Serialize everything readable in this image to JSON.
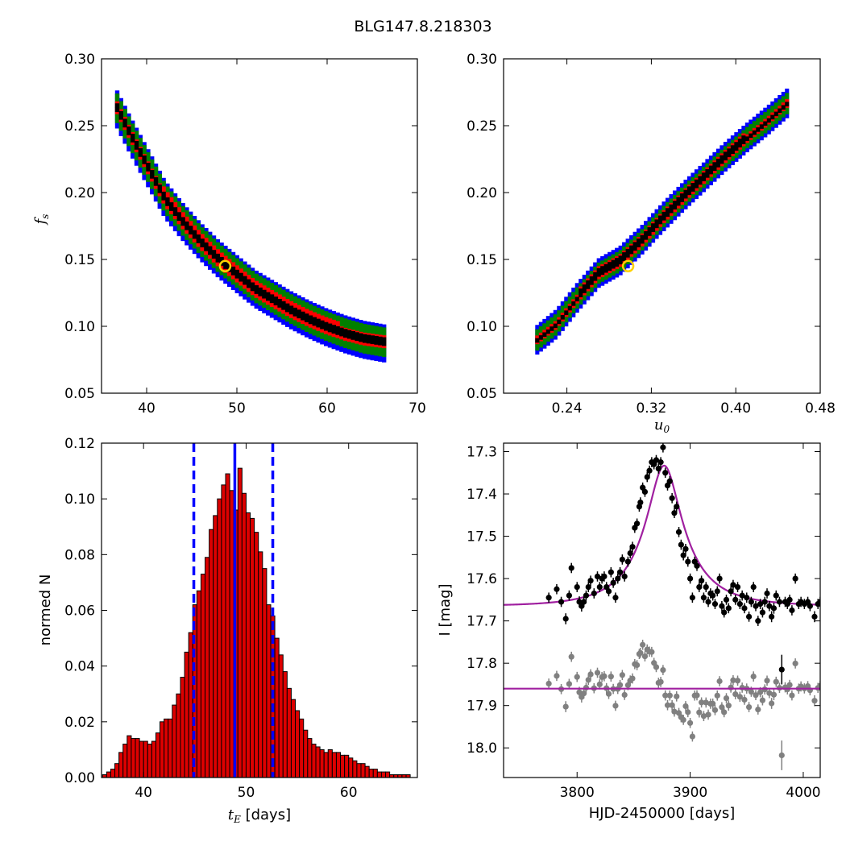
{
  "figure": {
    "title": "BLG147.8.218303"
  },
  "colors": {
    "level1": "#0000ff",
    "level2": "#008000",
    "level3": "#ff0000",
    "level4": "#000000",
    "best_marker_edge": "#ffd200",
    "hist_bar": "#dd0000",
    "blue_line": "#0000ff",
    "model": "#a020a0",
    "data_black": "#000000",
    "data_grey": "#808080"
  },
  "chart_data": [
    {
      "id": "fs-vs-tE",
      "type": "heatmap",
      "title": "",
      "xlabel": "",
      "ylabel": "f_s",
      "xlim": [
        35,
        70
      ],
      "ylim": [
        0.05,
        0.3
      ],
      "xticks": [
        40,
        50,
        60,
        70
      ],
      "xtick_labels": [
        "40",
        "50",
        "60",
        "70"
      ],
      "yticks": [
        0.05,
        0.1,
        0.15,
        0.2,
        0.25,
        0.3
      ],
      "ytick_labels": [
        "0.05",
        "0.10",
        "0.15",
        "0.20",
        "0.25",
        "0.30"
      ],
      "grid": false,
      "ridge": [
        [
          36.5,
          0.265
        ],
        [
          38,
          0.245
        ],
        [
          40,
          0.22
        ],
        [
          42,
          0.195
        ],
        [
          44,
          0.178
        ],
        [
          46,
          0.163
        ],
        [
          48,
          0.15
        ],
        [
          50,
          0.139
        ],
        [
          52,
          0.128
        ],
        [
          54,
          0.12
        ],
        [
          56,
          0.112
        ],
        [
          58,
          0.105
        ],
        [
          60,
          0.099
        ],
        [
          62,
          0.094
        ],
        [
          64,
          0.09
        ],
        [
          66.5,
          0.087
        ]
      ],
      "band_half_widths": [
        0.014,
        0.01,
        0.006,
        0.003
      ],
      "best_fit": [
        48.7,
        0.145
      ]
    },
    {
      "id": "fs-vs-u0",
      "type": "heatmap",
      "title": "",
      "xlabel": "u_0",
      "ylabel": "",
      "xlim": [
        0.18,
        0.48
      ],
      "ylim": [
        0.05,
        0.3
      ],
      "xticks": [
        0.24,
        0.32,
        0.4,
        0.48
      ],
      "xtick_labels": [
        "0.24",
        "0.32",
        "0.40",
        "0.48"
      ],
      "yticks": [
        0.05,
        0.1,
        0.15,
        0.2,
        0.25,
        0.3
      ],
      "ytick_labels": [
        "0.05",
        "0.10",
        "0.15",
        "0.20",
        "0.25",
        "0.30"
      ],
      "grid": false,
      "ridge": [
        [
          0.21,
          0.088
        ],
        [
          0.23,
          0.101
        ],
        [
          0.25,
          0.121
        ],
        [
          0.27,
          0.139
        ],
        [
          0.29,
          0.148
        ],
        [
          0.31,
          0.163
        ],
        [
          0.33,
          0.18
        ],
        [
          0.35,
          0.196
        ],
        [
          0.37,
          0.211
        ],
        [
          0.39,
          0.226
        ],
        [
          0.41,
          0.24
        ],
        [
          0.43,
          0.253
        ],
        [
          0.44,
          0.26
        ],
        [
          0.45,
          0.267
        ]
      ],
      "band_half_widths": [
        0.01,
        0.007,
        0.004,
        0.002
      ],
      "best_fit": [
        0.298,
        0.145
      ]
    },
    {
      "id": "tE-histogram",
      "type": "bar",
      "title": "",
      "xlabel": "t_E  [days]",
      "ylabel": "normed N",
      "xlim": [
        35.9,
        66.7
      ],
      "ylim": [
        0,
        0.12
      ],
      "xticks": [
        40,
        50,
        60
      ],
      "xtick_labels": [
        "40",
        "50",
        "60"
      ],
      "yticks": [
        0,
        0.02,
        0.04,
        0.06,
        0.08,
        0.1,
        0.12
      ],
      "ytick_labels": [
        "0.00",
        "0.02",
        "0.04",
        "0.06",
        "0.08",
        "0.10",
        "0.12"
      ],
      "grid": false,
      "bin_width": 0.4,
      "bin_start": 36.0,
      "values": [
        0.001,
        0.002,
        0.003,
        0.005,
        0.009,
        0.012,
        0.015,
        0.014,
        0.014,
        0.013,
        0.013,
        0.012,
        0.013,
        0.016,
        0.02,
        0.021,
        0.021,
        0.026,
        0.03,
        0.036,
        0.045,
        0.052,
        0.062,
        0.067,
        0.073,
        0.079,
        0.089,
        0.094,
        0.1,
        0.105,
        0.109,
        0.103,
        0.096,
        0.111,
        0.102,
        0.095,
        0.093,
        0.088,
        0.081,
        0.075,
        0.062,
        0.058,
        0.05,
        0.044,
        0.038,
        0.032,
        0.028,
        0.024,
        0.021,
        0.017,
        0.014,
        0.012,
        0.011,
        0.01,
        0.009,
        0.01,
        0.009,
        0.009,
        0.008,
        0.008,
        0.007,
        0.006,
        0.005,
        0.005,
        0.004,
        0.003,
        0.003,
        0.002,
        0.002,
        0.002,
        0.001,
        0.001,
        0.001,
        0.001,
        0.001
      ],
      "best_value": 48.9,
      "interval": [
        44.9,
        52.6
      ]
    },
    {
      "id": "light-curve",
      "type": "scatter",
      "title": "",
      "xlabel": "HJD-2450000 [days]",
      "ylabel": "I [mag]",
      "xlim": [
        3735,
        4015
      ],
      "ylim": [
        18.07,
        17.28
      ],
      "y_inverted": true,
      "xticks": [
        3800,
        3900,
        4000
      ],
      "xtick_labels": [
        "3800",
        "3900",
        "4000"
      ],
      "yticks": [
        17.3,
        17.4,
        17.5,
        17.6,
        17.7,
        17.8,
        17.9,
        18.0
      ],
      "ytick_labels": [
        "17.3",
        "17.4",
        "17.5",
        "17.6",
        "17.7",
        "17.8",
        "17.9",
        "18.0"
      ],
      "grid": false,
      "model": {
        "baseline": 17.665,
        "t0": 3877,
        "tE": 48.7,
        "u0": 0.298,
        "fs": 0.145
      },
      "residual_offset": 17.86,
      "points": [
        [
          3775,
          17.645,
          0.012
        ],
        [
          3782,
          17.625,
          0.012
        ],
        [
          3786,
          17.655,
          0.012
        ],
        [
          3790,
          17.695,
          0.013
        ],
        [
          3793,
          17.64,
          0.012
        ],
        [
          3795,
          17.575,
          0.012
        ],
        [
          3800,
          17.62,
          0.012
        ],
        [
          3802,
          17.655,
          0.013
        ],
        [
          3804,
          17.665,
          0.013
        ],
        [
          3806,
          17.655,
          0.012
        ],
        [
          3808,
          17.64,
          0.012
        ],
        [
          3810,
          17.62,
          0.012
        ],
        [
          3812,
          17.605,
          0.012
        ],
        [
          3815,
          17.635,
          0.012
        ],
        [
          3818,
          17.595,
          0.012
        ],
        [
          3820,
          17.62,
          0.012
        ],
        [
          3822,
          17.6,
          0.012
        ],
        [
          3824,
          17.595,
          0.012
        ],
        [
          3826,
          17.62,
          0.012
        ],
        [
          3828,
          17.63,
          0.012
        ],
        [
          3830,
          17.585,
          0.012
        ],
        [
          3832,
          17.61,
          0.012
        ],
        [
          3834,
          17.645,
          0.012
        ],
        [
          3836,
          17.6,
          0.012
        ],
        [
          3838,
          17.585,
          0.012
        ],
        [
          3840,
          17.555,
          0.012
        ],
        [
          3842,
          17.595,
          0.012
        ],
        [
          3845,
          17.56,
          0.012
        ],
        [
          3847,
          17.54,
          0.012
        ],
        [
          3849,
          17.525,
          0.012
        ],
        [
          3851,
          17.48,
          0.012
        ],
        [
          3853,
          17.47,
          0.012
        ],
        [
          3855,
          17.43,
          0.012
        ],
        [
          3856,
          17.42,
          0.012
        ],
        [
          3858,
          17.385,
          0.012
        ],
        [
          3860,
          17.395,
          0.012
        ],
        [
          3862,
          17.36,
          0.012
        ],
        [
          3864,
          17.345,
          0.012
        ],
        [
          3866,
          17.325,
          0.012
        ],
        [
          3868,
          17.33,
          0.012
        ],
        [
          3870,
          17.32,
          0.012
        ],
        [
          3872,
          17.34,
          0.012
        ],
        [
          3874,
          17.325,
          0.012
        ],
        [
          3876,
          17.29,
          0.012
        ],
        [
          3878,
          17.35,
          0.012
        ],
        [
          3880,
          17.38,
          0.012
        ],
        [
          3882,
          17.37,
          0.012
        ],
        [
          3884,
          17.41,
          0.012
        ],
        [
          3886,
          17.445,
          0.012
        ],
        [
          3888,
          17.43,
          0.012
        ],
        [
          3890,
          17.49,
          0.012
        ],
        [
          3892,
          17.52,
          0.012
        ],
        [
          3894,
          17.545,
          0.012
        ],
        [
          3896,
          17.53,
          0.012
        ],
        [
          3898,
          17.56,
          0.012
        ],
        [
          3900,
          17.6,
          0.012
        ],
        [
          3902,
          17.645,
          0.012
        ],
        [
          3904,
          17.56,
          0.012
        ],
        [
          3906,
          17.57,
          0.012
        ],
        [
          3908,
          17.62,
          0.012
        ],
        [
          3910,
          17.605,
          0.012
        ],
        [
          3912,
          17.645,
          0.012
        ],
        [
          3914,
          17.62,
          0.012
        ],
        [
          3916,
          17.655,
          0.012
        ],
        [
          3918,
          17.635,
          0.012
        ],
        [
          3920,
          17.64,
          0.012
        ],
        [
          3922,
          17.66,
          0.012
        ],
        [
          3924,
          17.63,
          0.012
        ],
        [
          3926,
          17.6,
          0.012
        ],
        [
          3928,
          17.665,
          0.012
        ],
        [
          3930,
          17.68,
          0.012
        ],
        [
          3932,
          17.65,
          0.012
        ],
        [
          3934,
          17.67,
          0.012
        ],
        [
          3936,
          17.63,
          0.012
        ],
        [
          3938,
          17.615,
          0.012
        ],
        [
          3940,
          17.65,
          0.012
        ],
        [
          3942,
          17.62,
          0.012
        ],
        [
          3944,
          17.66,
          0.012
        ],
        [
          3946,
          17.64,
          0.012
        ],
        [
          3948,
          17.67,
          0.012
        ],
        [
          3950,
          17.645,
          0.012
        ],
        [
          3952,
          17.69,
          0.012
        ],
        [
          3954,
          17.655,
          0.012
        ],
        [
          3956,
          17.62,
          0.012
        ],
        [
          3958,
          17.665,
          0.012
        ],
        [
          3960,
          17.7,
          0.012
        ],
        [
          3962,
          17.66,
          0.012
        ],
        [
          3964,
          17.68,
          0.012
        ],
        [
          3966,
          17.655,
          0.012
        ],
        [
          3968,
          17.635,
          0.012
        ],
        [
          3970,
          17.665,
          0.012
        ],
        [
          3972,
          17.69,
          0.013
        ],
        [
          3974,
          17.67,
          0.013
        ],
        [
          3976,
          17.64,
          0.012
        ],
        [
          3979,
          17.655,
          0.012
        ],
        [
          3981,
          17.815,
          0.035
        ],
        [
          3984,
          17.655,
          0.012
        ],
        [
          3986,
          17.66,
          0.012
        ],
        [
          3988,
          17.65,
          0.012
        ],
        [
          3990,
          17.675,
          0.012
        ],
        [
          3993,
          17.6,
          0.012
        ],
        [
          3996,
          17.66,
          0.012
        ],
        [
          3998,
          17.655,
          0.012
        ],
        [
          4001,
          17.66,
          0.012
        ],
        [
          4004,
          17.655,
          0.012
        ],
        [
          4006,
          17.665,
          0.012
        ],
        [
          4010,
          17.69,
          0.013
        ],
        [
          4013,
          17.66,
          0.012
        ],
        [
          4015,
          17.655,
          0.012
        ]
      ]
    }
  ]
}
